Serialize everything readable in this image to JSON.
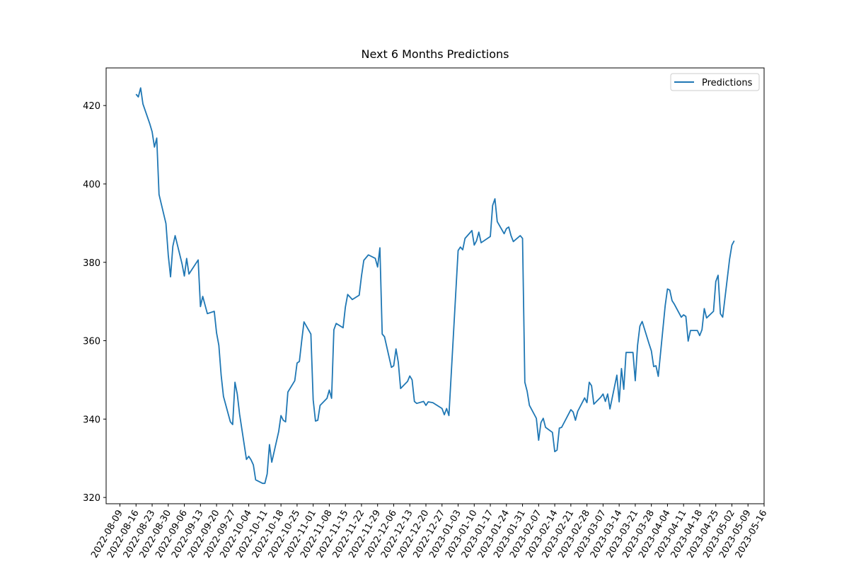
{
  "chart_data": {
    "type": "line",
    "title": "Next 6 Months Predictions",
    "x": [
      "2022-08-16",
      "2022-08-17",
      "2022-08-18",
      "2022-08-19",
      "2022-08-22",
      "2022-08-23",
      "2022-08-24",
      "2022-08-25",
      "2022-08-26",
      "2022-08-29",
      "2022-08-30",
      "2022-08-31",
      "2022-09-01",
      "2022-09-02",
      "2022-09-05",
      "2022-09-06",
      "2022-09-07",
      "2022-09-08",
      "2022-09-12",
      "2022-09-13",
      "2022-09-14",
      "2022-09-16",
      "2022-09-19",
      "2022-09-20",
      "2022-09-21",
      "2022-09-22",
      "2022-09-23",
      "2022-09-26",
      "2022-09-27",
      "2022-09-28",
      "2022-09-29",
      "2022-09-30",
      "2022-10-03",
      "2022-10-04",
      "2022-10-05",
      "2022-10-06",
      "2022-10-07",
      "2022-10-10",
      "2022-10-11",
      "2022-10-12",
      "2022-10-13",
      "2022-10-14",
      "2022-10-17",
      "2022-10-18",
      "2022-10-19",
      "2022-10-20",
      "2022-10-21",
      "2022-10-24",
      "2022-10-25",
      "2022-10-26",
      "2022-10-27",
      "2022-10-28",
      "2022-10-31",
      "2022-11-01",
      "2022-11-02",
      "2022-11-03",
      "2022-11-04",
      "2022-11-07",
      "2022-11-08",
      "2022-11-09",
      "2022-11-10",
      "2022-11-11",
      "2022-11-14",
      "2022-11-15",
      "2022-11-16",
      "2022-11-18",
      "2022-11-21",
      "2022-11-22",
      "2022-11-23",
      "2022-11-25",
      "2022-11-28",
      "2022-11-29",
      "2022-11-30",
      "2022-12-01",
      "2022-12-02",
      "2022-12-05",
      "2022-12-06",
      "2022-12-07",
      "2022-12-08",
      "2022-12-09",
      "2022-12-12",
      "2022-12-13",
      "2022-12-14",
      "2022-12-15",
      "2022-12-16",
      "2022-12-19",
      "2022-12-20",
      "2022-12-21",
      "2022-12-23",
      "2022-12-27",
      "2022-12-28",
      "2022-12-29",
      "2022-12-30",
      "2023-01-03",
      "2023-01-04",
      "2023-01-05",
      "2023-01-06",
      "2023-01-09",
      "2023-01-10",
      "2023-01-11",
      "2023-01-12",
      "2023-01-13",
      "2023-01-17",
      "2023-01-18",
      "2023-01-19",
      "2023-01-20",
      "2023-01-23",
      "2023-01-24",
      "2023-01-25",
      "2023-01-26",
      "2023-01-27",
      "2023-01-30",
      "2023-01-31",
      "2023-02-01",
      "2023-02-02",
      "2023-02-03",
      "2023-02-06",
      "2023-02-07",
      "2023-02-08",
      "2023-02-09",
      "2023-02-10",
      "2023-02-13",
      "2023-02-14",
      "2023-02-15",
      "2023-02-16",
      "2023-02-17",
      "2023-02-21",
      "2023-02-22",
      "2023-02-23",
      "2023-02-24",
      "2023-02-27",
      "2023-02-28",
      "2023-03-01",
      "2023-03-02",
      "2023-03-03",
      "2023-03-06",
      "2023-03-07",
      "2023-03-08",
      "2023-03-09",
      "2023-03-10",
      "2023-03-13",
      "2023-03-14",
      "2023-03-15",
      "2023-03-16",
      "2023-03-17",
      "2023-03-20",
      "2023-03-21",
      "2023-03-22",
      "2023-03-23",
      "2023-03-24",
      "2023-03-27",
      "2023-03-28",
      "2023-03-29",
      "2023-03-30",
      "2023-03-31",
      "2023-04-03",
      "2023-04-04",
      "2023-04-05",
      "2023-04-06",
      "2023-04-07",
      "2023-04-10",
      "2023-04-11",
      "2023-04-12",
      "2023-04-13",
      "2023-04-14",
      "2023-04-17",
      "2023-04-18",
      "2023-04-19",
      "2023-04-20",
      "2023-04-21",
      "2023-04-24",
      "2023-04-25",
      "2023-04-26",
      "2023-04-27",
      "2023-04-28",
      "2023-05-01",
      "2023-05-02",
      "2023-05-03"
    ],
    "series": [
      {
        "name": "Predictions",
        "color": "#1f77b4",
        "values": [
          422.9,
          422.2,
          424.5,
          420.4,
          415.3,
          413.3,
          409.4,
          411.7,
          397.3,
          389.9,
          381.9,
          376.3,
          384.1,
          386.8,
          379.6,
          376.5,
          381.0,
          377.0,
          380.6,
          368.7,
          371.3,
          366.9,
          367.5,
          362.0,
          358.8,
          351.2,
          345.8,
          339.3,
          338.6,
          349.4,
          346.4,
          341.3,
          329.7,
          330.5,
          329.6,
          328.3,
          324.5,
          323.6,
          323.6,
          326.0,
          333.5,
          329.0,
          336.8,
          340.9,
          339.7,
          339.3,
          346.9,
          349.8,
          354.3,
          354.7,
          359.9,
          364.8,
          361.7,
          344.9,
          339.5,
          339.7,
          343.5,
          345.3,
          347.4,
          345.3,
          362.8,
          364.4,
          363.3,
          368.6,
          371.8,
          370.5,
          371.6,
          376.5,
          380.5,
          381.9,
          381.0,
          378.8,
          383.7,
          361.7,
          361.0,
          353.2,
          353.6,
          357.9,
          354.5,
          347.8,
          349.6,
          351.0,
          350.0,
          344.5,
          344.0,
          344.5,
          343.5,
          344.4,
          344.2,
          342.7,
          341.1,
          342.7,
          340.9,
          383.0,
          383.9,
          383.2,
          386.1,
          388.1,
          384.4,
          385.5,
          387.7,
          385.0,
          386.6,
          394.5,
          396.2,
          390.4,
          387.3,
          388.6,
          389.0,
          386.8,
          385.3,
          386.8,
          386.1,
          349.4,
          347.1,
          343.5,
          340.2,
          334.6,
          339.1,
          340.2,
          337.9,
          336.6,
          331.7,
          332.1,
          337.7,
          337.9,
          342.4,
          341.8,
          339.7,
          342.0,
          345.4,
          344.2,
          349.4,
          348.5,
          343.8,
          345.6,
          346.4,
          344.5,
          346.4,
          342.6,
          351.2,
          344.4,
          352.9,
          347.6,
          357.0,
          357.0,
          349.8,
          358.8,
          363.7,
          364.9,
          359.2,
          357.4,
          353.4,
          353.6,
          350.9,
          368.9,
          373.2,
          372.9,
          370.2,
          369.3,
          366.0,
          366.6,
          366.2,
          359.9,
          362.6,
          362.6,
          361.3,
          362.8,
          368.2,
          365.8,
          367.5,
          375.1,
          376.7,
          366.9,
          366.0,
          380.8,
          384.4,
          385.5
        ]
      }
    ],
    "xlim": [
      "2022-08-03",
      "2023-05-16"
    ],
    "xticks": [
      "2022-08-09",
      "2022-08-16",
      "2022-08-23",
      "2022-08-30",
      "2022-09-06",
      "2022-09-13",
      "2022-09-20",
      "2022-09-27",
      "2022-10-04",
      "2022-10-11",
      "2022-10-18",
      "2022-10-25",
      "2022-11-01",
      "2022-11-08",
      "2022-11-15",
      "2022-11-22",
      "2022-11-29",
      "2022-12-06",
      "2022-12-13",
      "2022-12-20",
      "2022-12-27",
      "2023-01-03",
      "2023-01-10",
      "2023-01-17",
      "2023-01-24",
      "2023-01-31",
      "2023-02-07",
      "2023-02-14",
      "2023-02-21",
      "2023-02-28",
      "2023-03-07",
      "2023-03-14",
      "2023-03-21",
      "2023-03-28",
      "2023-04-04",
      "2023-04-11",
      "2023-04-18",
      "2023-04-25",
      "2023-05-02",
      "2023-05-09",
      "2023-05-16"
    ],
    "ylim": [
      318.4,
      429.6
    ],
    "yticks": [
      320,
      340,
      360,
      380,
      400,
      420
    ],
    "grid": false,
    "legend": "upper right"
  }
}
